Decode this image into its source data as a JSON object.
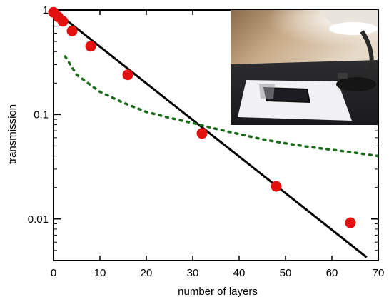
{
  "chart_data": {
    "type": "scatter",
    "title": "",
    "xlabel": "number of layers",
    "ylabel": "transmission",
    "xlim": [
      0,
      70
    ],
    "ylim": [
      0.004,
      1
    ],
    "y_scale": "log",
    "x_ticks": [
      0,
      10,
      20,
      30,
      40,
      50,
      60,
      70
    ],
    "x_tick_labels": [
      "0",
      "10",
      "20",
      "30",
      "40",
      "50",
      "60",
      "70"
    ],
    "y_ticks": [
      1,
      0.1,
      0.01
    ],
    "y_tick_labels": [
      "1",
      "0.1",
      "0.01"
    ],
    "grid": false,
    "series": [
      {
        "kind": "points",
        "color": "#e31010",
        "x": [
          0,
          1,
          2,
          4,
          8,
          16,
          32,
          48,
          64
        ],
        "y": [
          0.95,
          0.86,
          0.78,
          0.63,
          0.45,
          0.24,
          0.066,
          0.0205,
          0.0092
        ]
      },
      {
        "kind": "line",
        "style": "solid",
        "color": "#000000",
        "x": [
          0,
          67.5
        ],
        "y": [
          1.0,
          0.0043
        ]
      },
      {
        "kind": "line",
        "style": "dotted",
        "color": "#1a6b1a",
        "x": [
          2.5,
          5,
          10,
          15,
          20,
          25,
          30,
          35,
          40,
          45,
          50,
          55,
          60,
          65,
          70
        ],
        "y": [
          0.36,
          0.24,
          0.165,
          0.13,
          0.106,
          0.093,
          0.083,
          0.073,
          0.065,
          0.058,
          0.053,
          0.049,
          0.046,
          0.043,
          0.04
        ]
      }
    ]
  },
  "inset_photo": {
    "description_icons": [
      "desk-lamp-icon",
      "phone-icon",
      "paper-sheet-icon"
    ]
  }
}
